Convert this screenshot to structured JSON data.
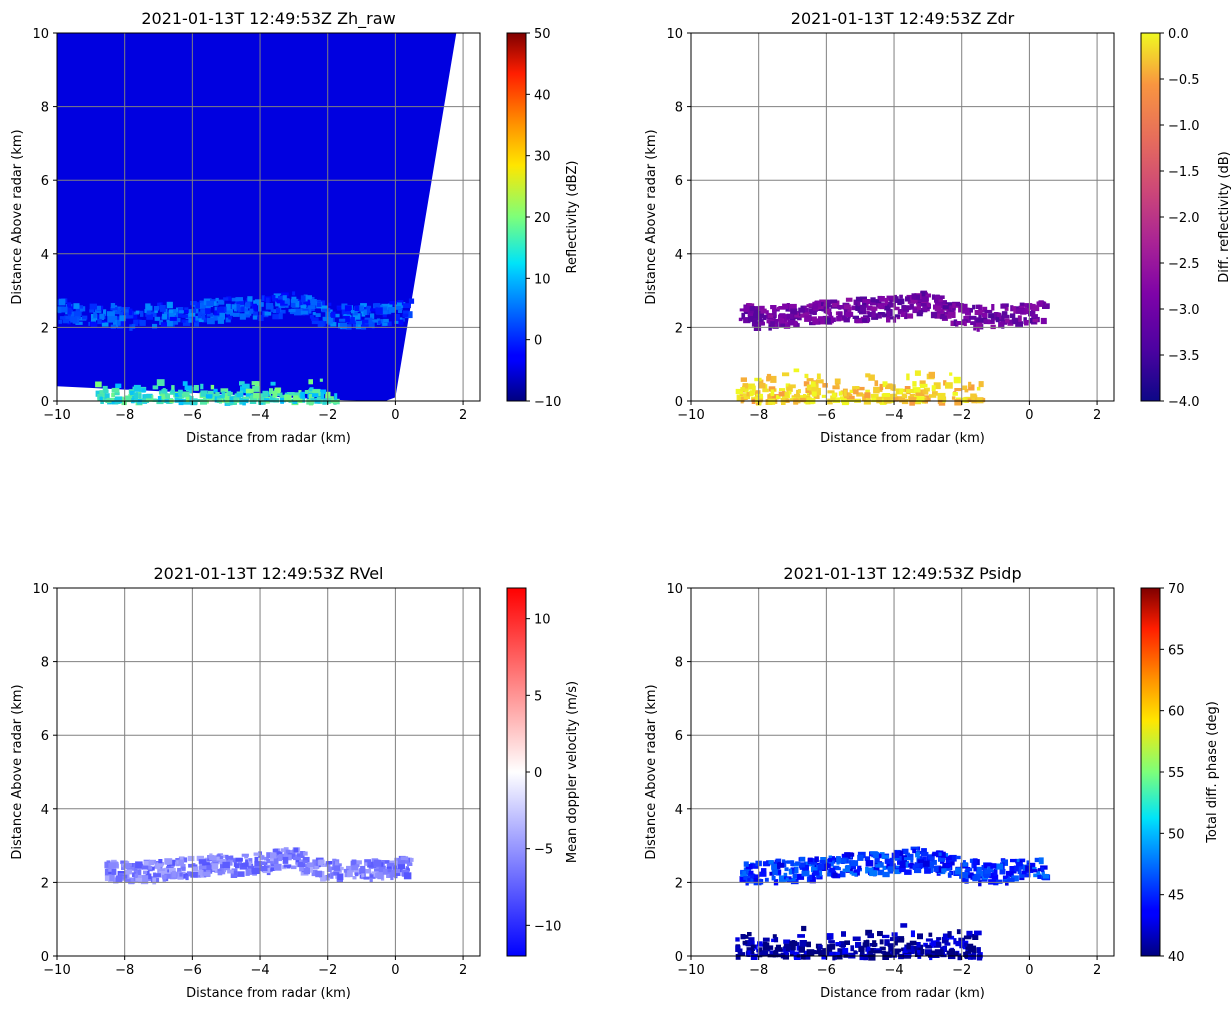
{
  "chart_data": [
    {
      "type": "heatmap",
      "title": "2021-01-13T 12:49:53Z  Zh_raw",
      "xlabel": "Distance from radar (km)",
      "ylabel": "Distance Above radar  (km)",
      "xlim": [
        -10,
        2.5
      ],
      "ylim": [
        0,
        10
      ],
      "xticks": [
        -10,
        -8,
        -6,
        -4,
        -2,
        0,
        2
      ],
      "xtick_labels": [
        "−10",
        "−8",
        "−6",
        "−4",
        "−2",
        "0",
        "2"
      ],
      "yticks": [
        0,
        2,
        4,
        6,
        8,
        10
      ],
      "ytick_labels": [
        "0",
        "2",
        "4",
        "6",
        "8",
        "10"
      ],
      "grid": true,
      "colorbar": {
        "label": "Reflectivity (dBZ)",
        "colormap": "jet",
        "range": [
          -10,
          50
        ],
        "ticks": [
          -10,
          0,
          10,
          20,
          30,
          40,
          50
        ],
        "tick_labels": [
          "−10",
          "0",
          "10",
          "20",
          "30",
          "40",
          "50"
        ]
      },
      "data_regions": [
        {
          "desc": "background echo",
          "x_range": [
            -10,
            1.8
          ],
          "y_range": [
            0.4,
            10
          ],
          "value": -5
        },
        {
          "desc": "layer",
          "x_range": [
            -10,
            0.4
          ],
          "y_range": [
            2.2,
            3.2
          ],
          "value": 2
        },
        {
          "desc": "low level",
          "x_range": [
            -9,
            -1.8
          ],
          "y_range": [
            0,
            0.6
          ],
          "value": 15
        }
      ]
    },
    {
      "type": "heatmap",
      "title": "2021-01-13T 12:49:53Z  Zdr",
      "xlabel": "Distance from radar (km)",
      "ylabel": "Distance Above radar  (km)",
      "xlim": [
        -10,
        2.5
      ],
      "ylim": [
        0,
        10
      ],
      "xticks": [
        -10,
        -8,
        -6,
        -4,
        -2,
        0,
        2
      ],
      "xtick_labels": [
        "−10",
        "−8",
        "−6",
        "−4",
        "−2",
        "0",
        "2"
      ],
      "yticks": [
        0,
        2,
        4,
        6,
        8,
        10
      ],
      "ytick_labels": [
        "0",
        "2",
        "4",
        "6",
        "8",
        "10"
      ],
      "grid": true,
      "colorbar": {
        "label": "Diff. reflectivity (dB)",
        "colormap": "plasma",
        "range": [
          -4,
          0
        ],
        "ticks": [
          -4.0,
          -3.5,
          -3.0,
          -2.5,
          -2.0,
          -1.5,
          -1.0,
          -0.5,
          0.0
        ],
        "tick_labels": [
          "−4.0",
          "−3.5",
          "−3.0",
          "−2.5",
          "−2.0",
          "−1.5",
          "−1.0",
          "−0.5",
          "0.0"
        ]
      },
      "data_regions": [
        {
          "desc": "layer",
          "x_range": [
            -8.6,
            0.4
          ],
          "y_range": [
            2.1,
            3.1
          ],
          "value": -3
        },
        {
          "desc": "low level",
          "x_range": [
            -8.7,
            -1.5
          ],
          "y_range": [
            0,
            0.9
          ],
          "value": -0.2
        }
      ]
    },
    {
      "type": "heatmap",
      "title": "2021-01-13T 12:49:53Z  RVel",
      "xlabel": "Distance from radar (km)",
      "ylabel": "Distance Above radar  (km)",
      "xlim": [
        -10,
        2.5
      ],
      "ylim": [
        0,
        10
      ],
      "xticks": [
        -10,
        -8,
        -6,
        -4,
        -2,
        0,
        2
      ],
      "xtick_labels": [
        "−10",
        "−8",
        "−6",
        "−4",
        "−2",
        "0",
        "2"
      ],
      "yticks": [
        0,
        2,
        4,
        6,
        8,
        10
      ],
      "ytick_labels": [
        "0",
        "2",
        "4",
        "6",
        "8",
        "10"
      ],
      "grid": true,
      "colorbar": {
        "label": "Mean doppler velocity (m/s)",
        "colormap": "bwr",
        "range": [
          -12,
          12
        ],
        "ticks": [
          -10,
          -5,
          0,
          5,
          10
        ],
        "tick_labels": [
          "−10",
          "−5",
          "0",
          "5",
          "10"
        ]
      },
      "data_regions": [
        {
          "desc": "layer",
          "x_range": [
            -8.6,
            0.4
          ],
          "y_range": [
            2.2,
            3.1
          ],
          "value": -6
        }
      ]
    },
    {
      "type": "heatmap",
      "title": "2021-01-13T 12:49:53Z  Psidp",
      "xlabel": "Distance from radar (km)",
      "ylabel": "Distance Above radar  (km)",
      "xlim": [
        -10,
        2.5
      ],
      "ylim": [
        0,
        10
      ],
      "xticks": [
        -10,
        -8,
        -6,
        -4,
        -2,
        0,
        2
      ],
      "xtick_labels": [
        "−10",
        "−8",
        "−6",
        "−4",
        "−2",
        "0",
        "2"
      ],
      "yticks": [
        0,
        2,
        4,
        6,
        8,
        10
      ],
      "ytick_labels": [
        "0",
        "2",
        "4",
        "6",
        "8",
        "10"
      ],
      "grid": true,
      "colorbar": {
        "label": "Total diff. phase (deg)",
        "colormap": "jet",
        "range": [
          40,
          70
        ],
        "ticks": [
          40,
          45,
          50,
          55,
          60,
          65,
          70
        ],
        "tick_labels": [
          "40",
          "45",
          "50",
          "55",
          "60",
          "65",
          "70"
        ]
      },
      "data_regions": [
        {
          "desc": "layer",
          "x_range": [
            -8.6,
            0.4
          ],
          "y_range": [
            2.1,
            3.1
          ],
          "value": 45
        },
        {
          "desc": "low level",
          "x_range": [
            -8.7,
            -1.5
          ],
          "y_range": [
            0,
            0.9
          ],
          "value": 41
        }
      ]
    }
  ]
}
